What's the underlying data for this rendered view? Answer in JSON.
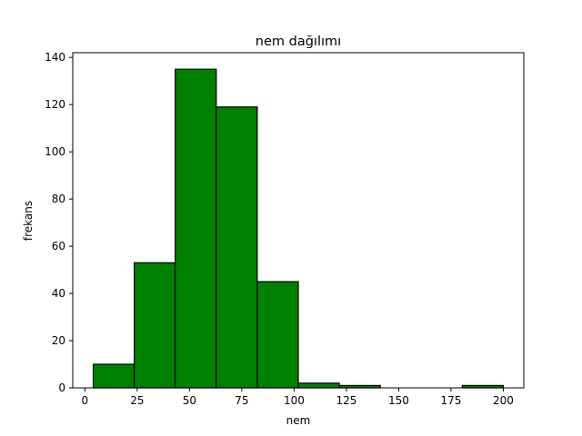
{
  "chart_data": {
    "type": "histogram",
    "title": "nem dağılımı",
    "xlabel": "nem",
    "ylabel": "frekans",
    "xlim": [
      -5.8,
      209.8
    ],
    "ylim": [
      0,
      142
    ],
    "xticks": [
      0,
      25,
      50,
      75,
      100,
      125,
      150,
      175,
      200
    ],
    "yticks": [
      0,
      20,
      40,
      60,
      80,
      100,
      120,
      140
    ],
    "bin_edges": [
      4,
      23.6,
      43.2,
      62.8,
      82.4,
      102,
      121.6,
      141.2,
      160.8,
      180.4,
      200
    ],
    "counts": [
      10,
      53,
      135,
      119,
      45,
      2,
      1,
      0,
      0,
      1
    ],
    "bar_color": "#008000",
    "edge_color": "#000000",
    "grid": false,
    "legend": "none"
  }
}
